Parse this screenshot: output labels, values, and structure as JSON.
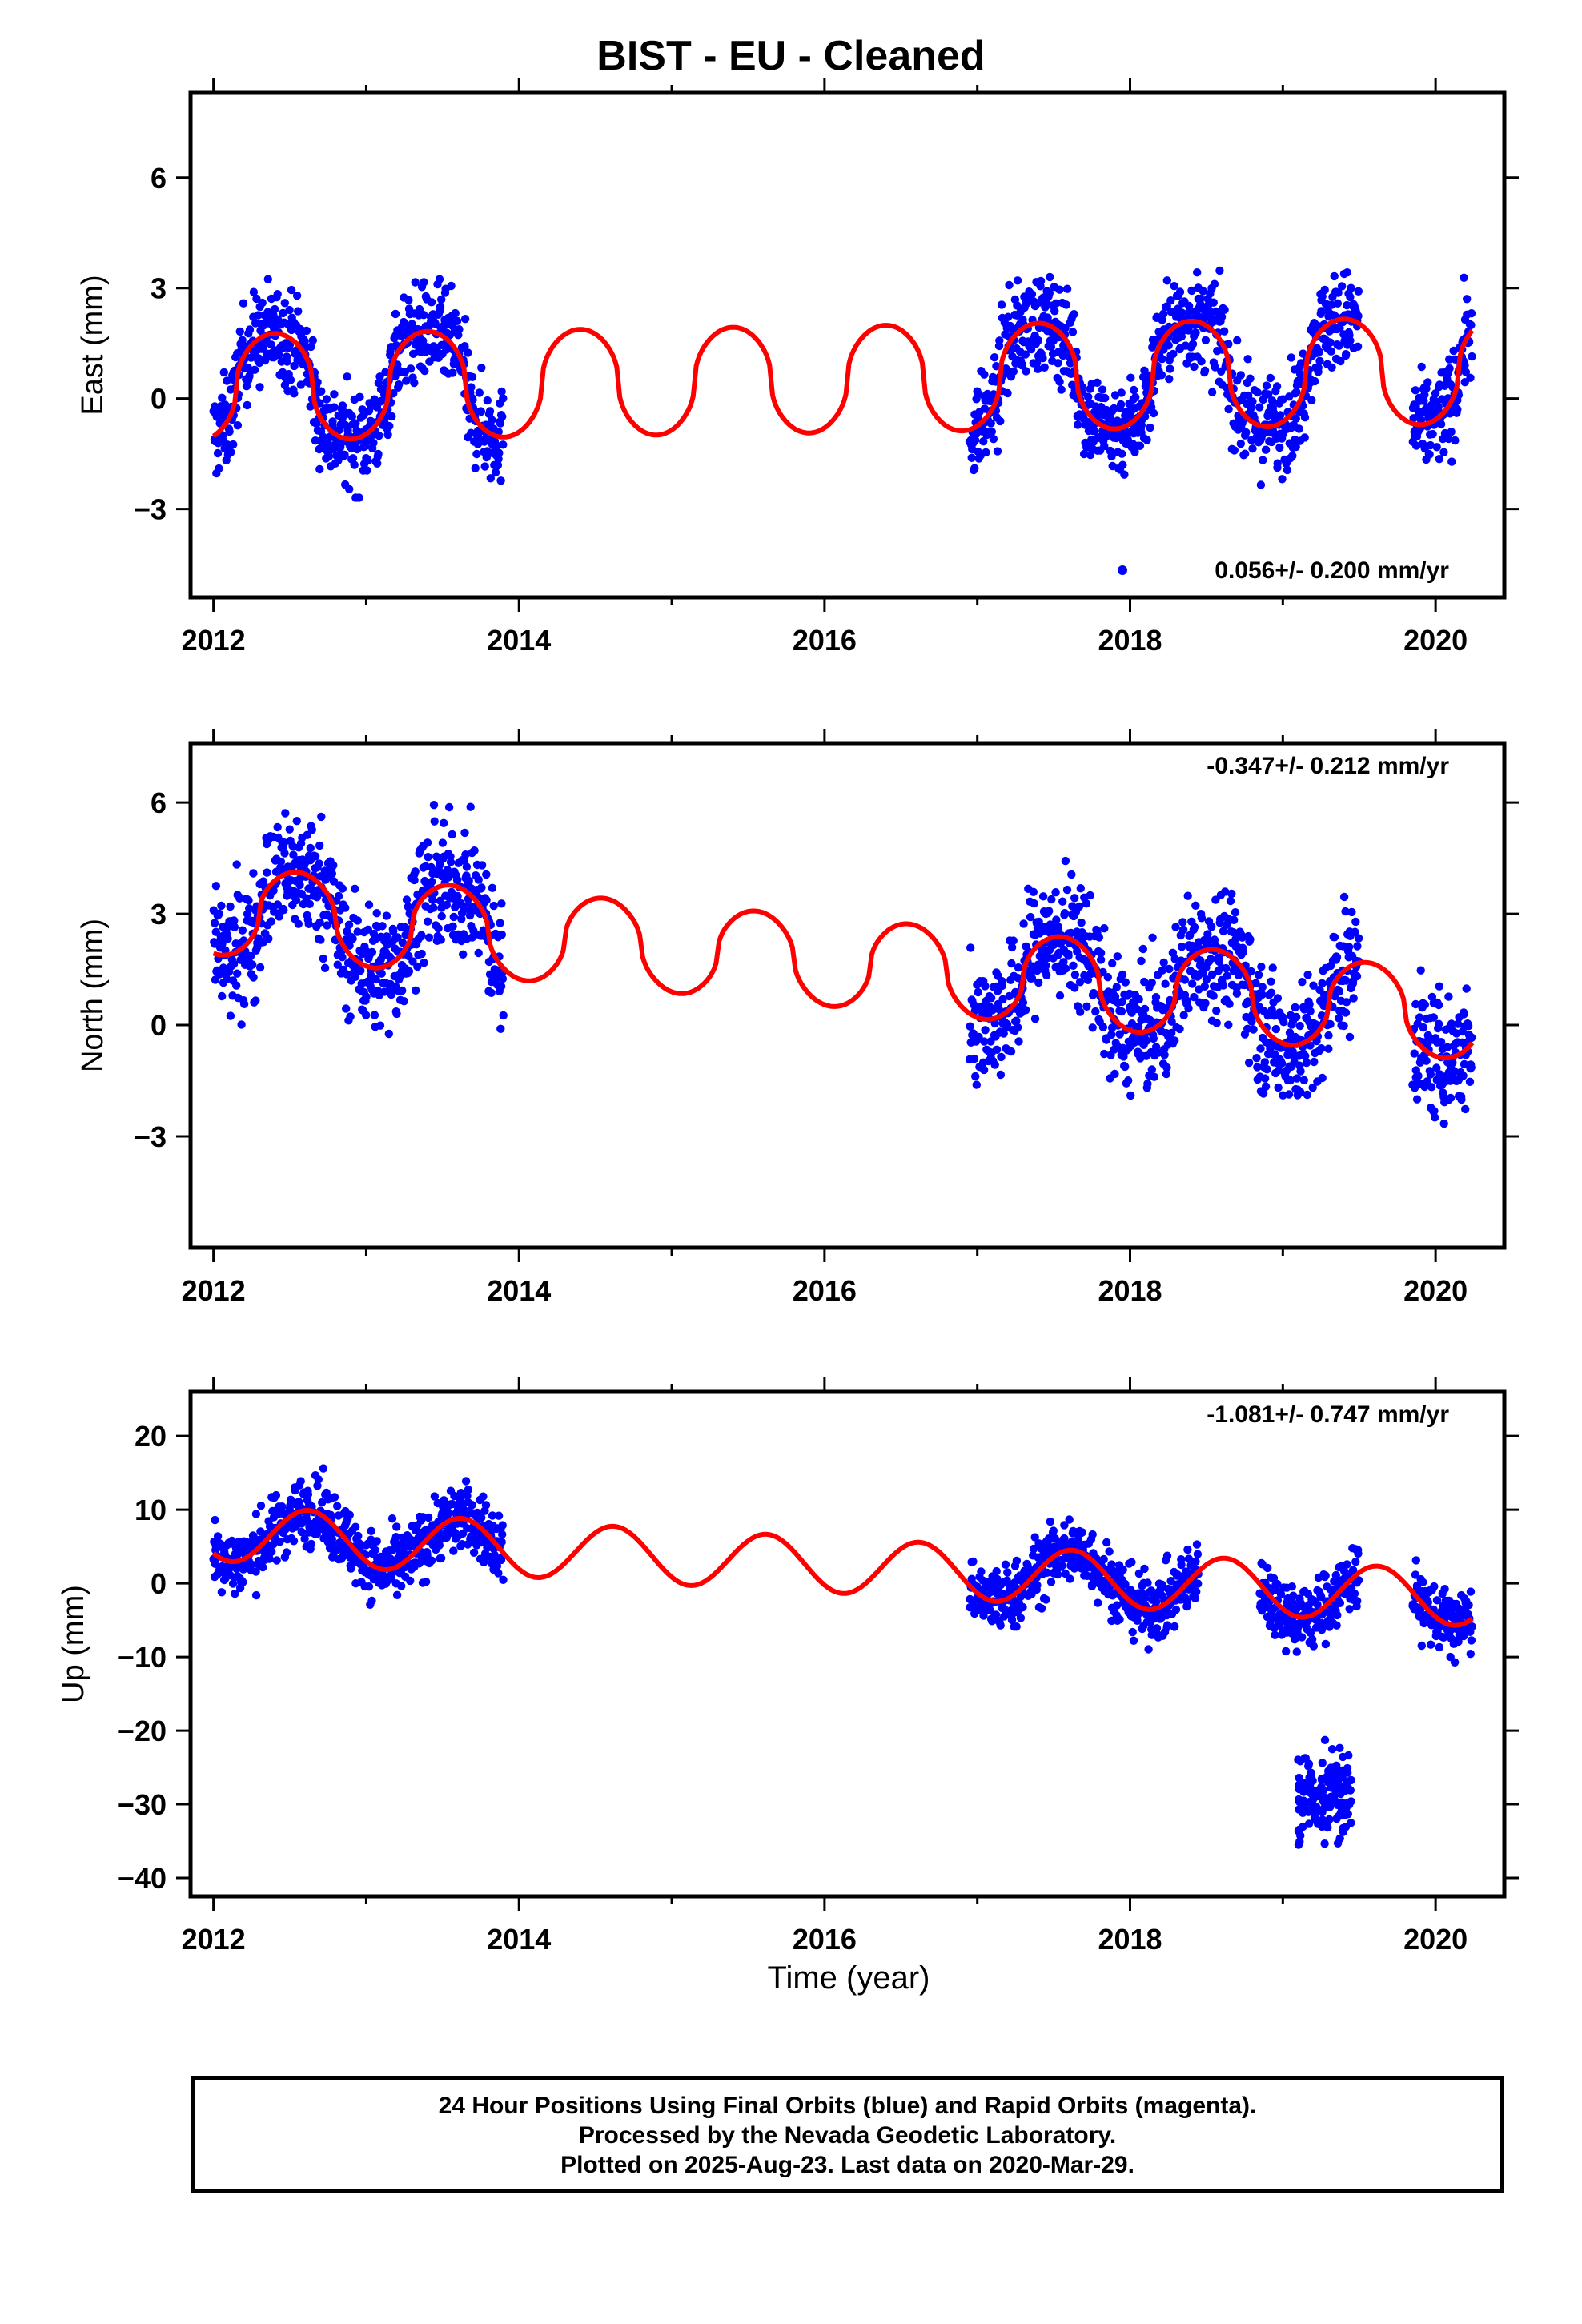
{
  "title": "BIST  - EU - Cleaned",
  "xlabel": "Time (year)",
  "footer": {
    "line1": "24 Hour Positions Using Final Orbits (blue) and Rapid Orbits (magenta).",
    "line2": "Processed by the Nevada Geodetic Laboratory.",
    "line3": "Plotted on 2025-Aug-23. Last data on 2020-Mar-29."
  },
  "colors": {
    "data": "#0000ff",
    "model": "#ff0000",
    "frame": "#000000"
  },
  "chart_data": [
    {
      "type": "scatter",
      "ylabel": "East (mm)",
      "rate_label": "0.056+/- 0.200 mm/yr",
      "legend_marker": true,
      "xlim": [
        2011.85,
        2020.45
      ],
      "ylim": [
        -5.4,
        8.3
      ],
      "xticks": [
        2012,
        2014,
        2016,
        2018,
        2020
      ],
      "yticks": [
        6,
        3,
        0,
        -3
      ],
      "data_segments": [
        [
          2012.0,
          2013.9
        ],
        [
          2016.95,
          2019.5
        ],
        [
          2019.85,
          2020.24
        ]
      ],
      "model": {
        "offset": 1.1,
        "amplitude": 2.9,
        "phase_peak": 2012.4,
        "sharpness": 2.2,
        "trend": 0.056
      },
      "scatter": 1.0
    },
    {
      "type": "scatter",
      "ylabel": "North (mm)",
      "rate_label": "-0.347+/- 0.212 mm/yr",
      "legend_marker": false,
      "xlim": [
        2011.85,
        2020.45
      ],
      "ylim": [
        -6.0,
        7.6
      ],
      "xticks": [
        2012,
        2014,
        2016,
        2018,
        2020
      ],
      "yticks": [
        6,
        3,
        0,
        -3
      ],
      "data_segments": [
        [
          2012.0,
          2013.9
        ],
        [
          2016.95,
          2019.5
        ],
        [
          2019.85,
          2020.24
        ]
      ],
      "model": {
        "offset": 2.2,
        "amplitude": 2.4,
        "phase_peak": 2012.55,
        "sharpness": 2.0,
        "trend": -0.347
      },
      "scatter": 1.3
    },
    {
      "type": "scatter",
      "ylabel": "Up (mm)",
      "rate_label": "-1.081+/- 0.747 mm/yr",
      "legend_marker": false,
      "xlim": [
        2011.85,
        2020.45
      ],
      "ylim": [
        -42.5,
        26
      ],
      "xticks": [
        2012,
        2014,
        2016,
        2018,
        2020
      ],
      "yticks": [
        20,
        10,
        0,
        -10,
        -20,
        -30,
        -40
      ],
      "data_segments": [
        [
          2012.0,
          2013.9
        ],
        [
          2016.95,
          2018.45
        ],
        [
          2018.85,
          2019.5
        ],
        [
          2019.85,
          2020.24
        ]
      ],
      "outlier_cluster": {
        "x": [
          2019.1,
          2019.45
        ],
        "y_center": -29,
        "y_spread": 5
      },
      "model": {
        "offset": 4.0,
        "amplitude": 7.5,
        "phase_peak": 2012.62,
        "sharpness": 1.0,
        "trend": -1.081
      },
      "scatter": 3.5
    }
  ]
}
